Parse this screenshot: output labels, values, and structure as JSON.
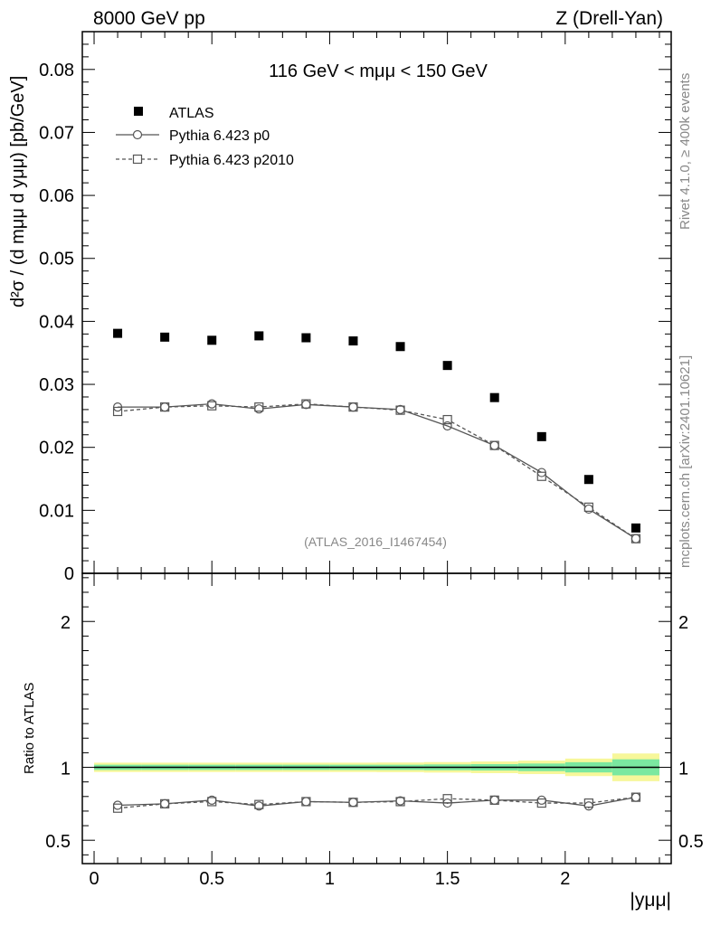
{
  "header": {
    "left_title": "8000 GeV pp",
    "right_title": "Z (Drell-Yan)",
    "side_note_top": "Rivet 4.1.0, ≥ 400k events",
    "side_note_bottom": "mcplots.cern.ch [arXiv:2401.10621]",
    "mass_range_text": "116 GeV < mμμ < 150 GeV",
    "analysis_tag": "(ATLAS_2016_I1467454)"
  },
  "axes": {
    "y_top_label": "d²σ / (d mμμ d yμμ) [pb/GeV]",
    "y_bottom_label": "Ratio to ATLAS",
    "x_label": "|yμμ|"
  },
  "legend": {
    "atlas": "ATLAS",
    "p0": "Pythia 6.423 p0",
    "p2010": "Pythia 6.423 p2010"
  },
  "colors": {
    "data": "#000000",
    "mc": "#555555",
    "band_inner": "#7be8a0",
    "band_outer": "#f7f79a",
    "note": "#888888"
  },
  "chart_data": [
    {
      "type": "scatter",
      "panel": "main",
      "title": "116 GeV < mμμ < 150 GeV",
      "xlabel": "|yμμ|",
      "ylabel": "d²σ/dmμμ dyμμ [pb/GeV]",
      "xlim": [
        -0.05,
        2.45
      ],
      "ylim": [
        0,
        0.086
      ],
      "yticks": [
        0,
        0.01,
        0.02,
        0.03,
        0.04,
        0.05,
        0.06,
        0.07,
        0.08
      ],
      "ytick_labels": [
        "0",
        "0.01",
        "0.02",
        "0.03",
        "0.04",
        "0.05",
        "0.06",
        "0.07",
        "0.08"
      ],
      "x": [
        0.1,
        0.3,
        0.5,
        0.7,
        0.9,
        1.1,
        1.3,
        1.5,
        1.7,
        1.9,
        2.1,
        2.3
      ],
      "series": [
        {
          "name": "ATLAS",
          "style": "marker",
          "values": [
            0.0381,
            0.0375,
            0.037,
            0.0377,
            0.0374,
            0.0369,
            0.036,
            0.033,
            0.0279,
            0.0217,
            0.0149,
            0.0072
          ]
        },
        {
          "name": "Pythia 6.423 p0",
          "style": "solid",
          "values": [
            0.0264,
            0.0264,
            0.0269,
            0.0261,
            0.0268,
            0.0264,
            0.026,
            0.0234,
            0.0203,
            0.016,
            0.0102,
            0.0055
          ]
        },
        {
          "name": "Pythia 6.423 p2010",
          "style": "dashed",
          "values": [
            0.0257,
            0.0264,
            0.0266,
            0.0264,
            0.0269,
            0.0264,
            0.0259,
            0.0244,
            0.0203,
            0.0154,
            0.0105,
            0.0055
          ]
        }
      ]
    },
    {
      "type": "line",
      "panel": "ratio",
      "xlabel": "|yμμ|",
      "ylabel": "Ratio to ATLAS",
      "xlim": [
        -0.05,
        2.45
      ],
      "ylim": [
        0.34,
        2.33
      ],
      "yticks": [
        0.5,
        1,
        2
      ],
      "ytick_labels": [
        "0.5",
        "1",
        "2"
      ],
      "xticks": [
        0,
        0.5,
        1,
        1.5,
        2
      ],
      "xtick_labels": [
        "0",
        "0.5",
        "1",
        "1.5",
        "2"
      ],
      "x": [
        0.1,
        0.3,
        0.5,
        0.7,
        0.9,
        1.1,
        1.3,
        1.5,
        1.7,
        1.9,
        2.1,
        2.3
      ],
      "band": {
        "edges": [
          0,
          0.2,
          0.4,
          0.6,
          0.8,
          1.0,
          1.2,
          1.4,
          1.6,
          1.8,
          2.0,
          2.2,
          2.4
        ],
        "inner": [
          0.018,
          0.018,
          0.018,
          0.018,
          0.018,
          0.018,
          0.018,
          0.02,
          0.022,
          0.026,
          0.035,
          0.055
        ],
        "outer": [
          0.032,
          0.032,
          0.032,
          0.032,
          0.032,
          0.032,
          0.033,
          0.036,
          0.04,
          0.046,
          0.06,
          0.095
        ]
      },
      "series": [
        {
          "name": "Pythia 6.423 p0",
          "style": "solid",
          "values": [
            0.74,
            0.75,
            0.775,
            0.735,
            0.765,
            0.76,
            0.77,
            0.755,
            0.775,
            0.775,
            0.735,
            0.795
          ],
          "errors": [
            0.005,
            0.005,
            0.005,
            0.005,
            0.005,
            0.005,
            0.006,
            0.006,
            0.008,
            0.01,
            0.018,
            0.03
          ]
        },
        {
          "name": "Pythia 6.423 p2010",
          "style": "dashed",
          "values": [
            0.72,
            0.75,
            0.765,
            0.745,
            0.765,
            0.76,
            0.765,
            0.785,
            0.775,
            0.755,
            0.755,
            0.795
          ],
          "errors": [
            0.005,
            0.005,
            0.005,
            0.005,
            0.005,
            0.005,
            0.006,
            0.006,
            0.008,
            0.01,
            0.018,
            0.03
          ]
        }
      ],
      "reference_value": 1
    }
  ]
}
